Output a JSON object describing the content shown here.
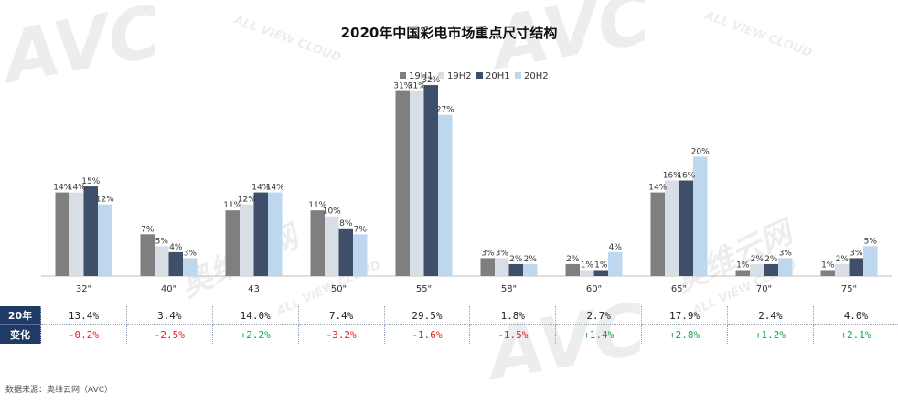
{
  "chart_data": {
    "type": "bar",
    "title": "2020年中国彩电市场重点尺寸结构",
    "categories": [
      "32\"",
      "40\"",
      "43",
      "50\"",
      "55\"",
      "58\"",
      "60\"",
      "65\"",
      "70\"",
      "75\""
    ],
    "series": [
      {
        "name": "19H1",
        "color": "#7f7f7f",
        "values": [
          14,
          7,
          11,
          11,
          31,
          3,
          2,
          14,
          1,
          1
        ],
        "labels": [
          "14%",
          "7%",
          "11%",
          "11%",
          "31%",
          "3%",
          "2%",
          "14%",
          "1%",
          "1%"
        ]
      },
      {
        "name": "19H2",
        "color": "#d9dde5",
        "values": [
          14,
          5,
          12,
          10,
          31,
          3,
          1,
          16,
          2,
          2
        ],
        "labels": [
          "14%",
          "5%",
          "12%",
          "10%",
          "31%",
          "3%",
          "1%",
          "16%",
          "2%",
          "2%"
        ]
      },
      {
        "name": "20H1",
        "color": "#3f4f69",
        "values": [
          15,
          4,
          14,
          8,
          32,
          2,
          1,
          16,
          2,
          3
        ],
        "labels": [
          "15%",
          "4%",
          "14%",
          "8%",
          "32%",
          "2%",
          "1%",
          "16%",
          "2%",
          "3%"
        ]
      },
      {
        "name": "20H2",
        "color": "#bdd7ee",
        "values": [
          12,
          3,
          14,
          7,
          27,
          2,
          4,
          20,
          3,
          5
        ],
        "labels": [
          "12%",
          "3%",
          "14%",
          "7%",
          "27%",
          "2%",
          "4%",
          "20%",
          "3%",
          "5%"
        ]
      }
    ],
    "ylim": [
      0,
      34
    ],
    "legend": "top-center",
    "xlabel": "",
    "ylabel": ""
  },
  "table": {
    "row1_header": "20年",
    "row2_header": "变化",
    "share": [
      "13.4%",
      "3.4%",
      "14.0%",
      "7.4%",
      "29.5%",
      "1.8%",
      "2.7%",
      "17.9%",
      "2.4%",
      "4.0%"
    ],
    "change": [
      "-0.2%",
      "-2.5%",
      "+2.2%",
      "-3.2%",
      "-1.6%",
      "-1.5%",
      "+1.4%",
      "+2.8%",
      "+1.2%",
      "+2.1%"
    ]
  },
  "watermark": {
    "brand": "AVC",
    "sub": "ALL VIEW CLOUD",
    "cn": "奥维云网"
  },
  "source": "数据来源：奥维云网（AVC）",
  "colors": {
    "header_bg": "#1f3a66",
    "negative": "#e02020",
    "positive": "#17a34a"
  }
}
